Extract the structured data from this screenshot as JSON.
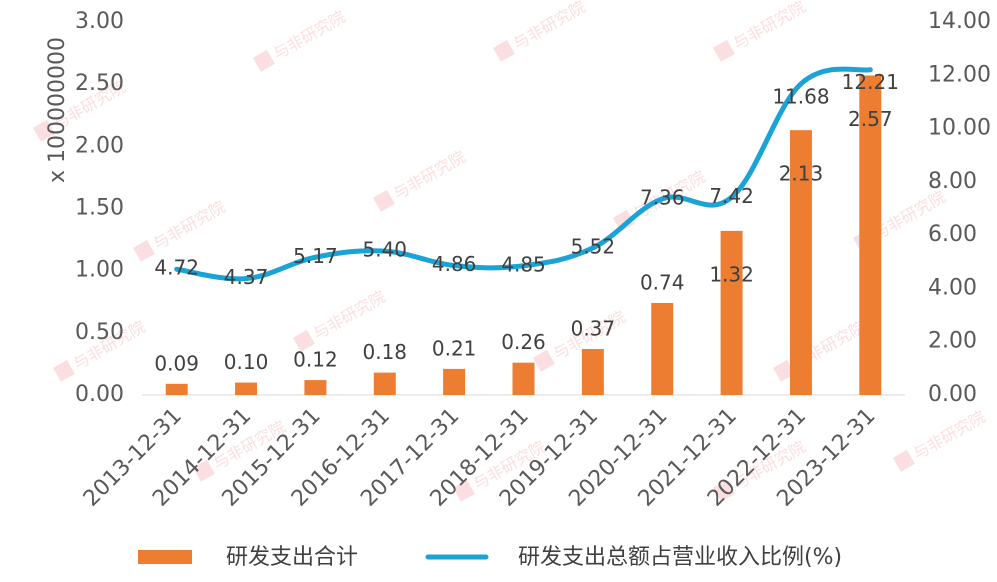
{
  "chart_data": {
    "type": "bar",
    "categories": [
      "2013-12-31",
      "2014-12-31",
      "2015-12-31",
      "2016-12-31",
      "2017-12-31",
      "2018-12-31",
      "2019-12-31",
      "2020-12-31",
      "2021-12-31",
      "2022-12-31",
      "2023-12-31"
    ],
    "series": [
      {
        "name": "研发支出合计",
        "type": "bar",
        "axis": "left",
        "color": "#ED7D31",
        "values": [
          0.09,
          0.1,
          0.12,
          0.18,
          0.21,
          0.26,
          0.37,
          0.74,
          1.32,
          2.13,
          2.57
        ],
        "labels": [
          "0.09",
          "0.10",
          "0.12",
          "0.18",
          "0.21",
          "0.26",
          "0.37",
          "0.74",
          "1.32",
          "2.13",
          "2.57"
        ]
      },
      {
        "name": "研发支出总额占营业收入比例(%)",
        "type": "line",
        "axis": "right",
        "color": "#1AA3D6",
        "values": [
          4.72,
          4.37,
          5.17,
          5.4,
          4.86,
          4.85,
          5.52,
          7.36,
          7.42,
          11.68,
          12.21
        ],
        "labels": [
          "4.72",
          "4.37",
          "5.17",
          "5.40",
          "4.86",
          "4.85",
          "5.52",
          "7.36",
          "7.42",
          "11.68",
          "12.21"
        ]
      }
    ],
    "ylabel": "x 100000000",
    "y_left": {
      "range": [
        0,
        3
      ],
      "ticks": [
        0,
        0.5,
        1,
        1.5,
        2,
        2.5,
        3
      ],
      "tick_labels": [
        "0.00",
        "0.50",
        "1.00",
        "1.50",
        "2.00",
        "2.50",
        "3.00"
      ]
    },
    "y_right": {
      "range": [
        0,
        14
      ],
      "ticks": [
        0,
        2,
        4,
        6,
        8,
        10,
        12,
        14
      ],
      "tick_labels": [
        "0.00",
        "2.00",
        "4.00",
        "6.00",
        "8.00",
        "10.00",
        "12.00",
        "14.00"
      ]
    },
    "grid": false,
    "legend": {
      "position": "bottom",
      "items": [
        "研发支出合计",
        "研发支出总额占营业收入比例(%)"
      ]
    }
  },
  "watermark": {
    "text": "与非研究院"
  }
}
